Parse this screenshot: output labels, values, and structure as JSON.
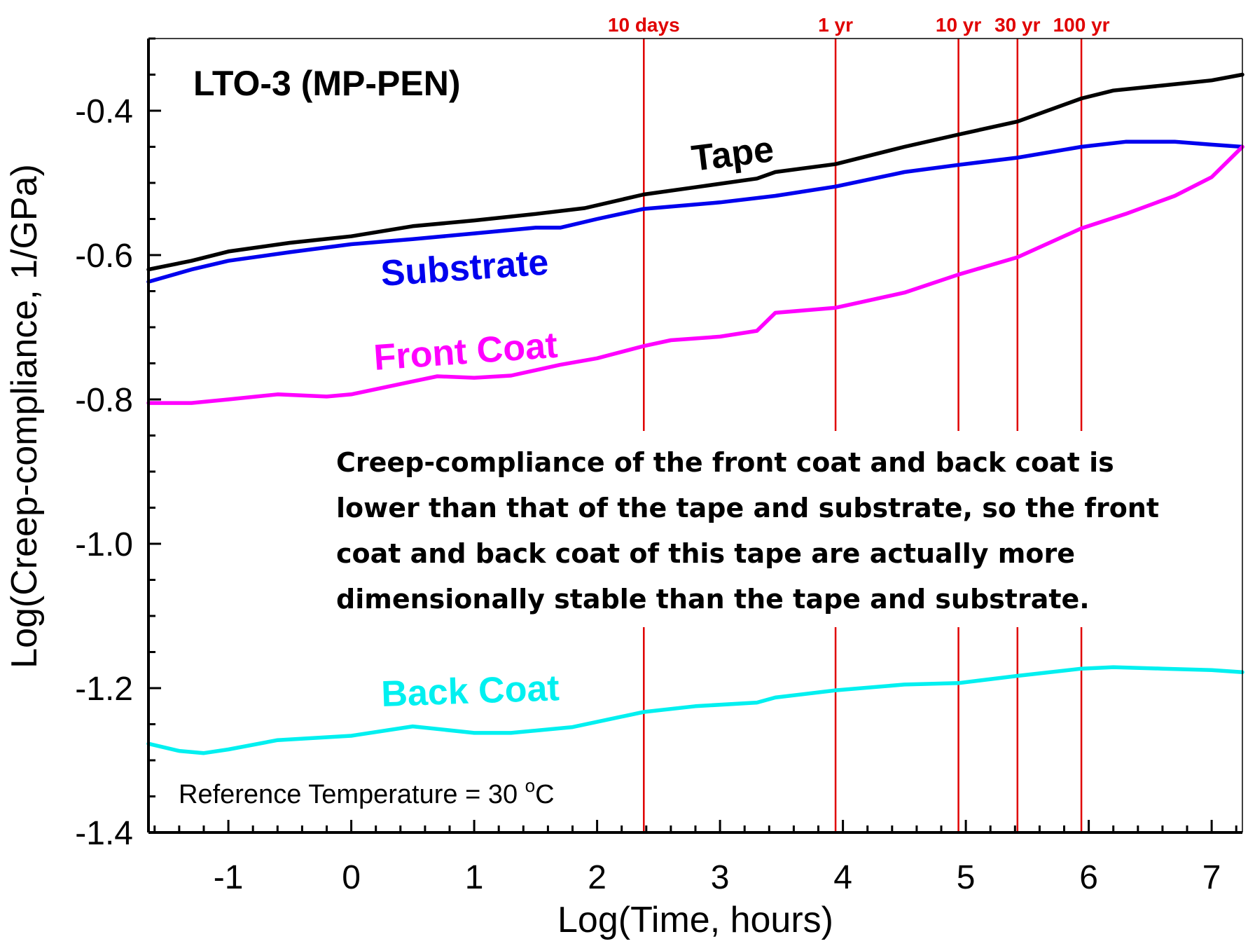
{
  "chart_data": {
    "type": "line",
    "title": "LTO-3 (MP-PEN)",
    "xlabel": "Log(Time, hours)",
    "ylabel": "Log(Creep-compliance, 1/GPa)",
    "xlim": [
      -1.65,
      7.25
    ],
    "ylim": [
      -1.4,
      -0.3
    ],
    "x_ticks": [
      -1,
      0,
      1,
      2,
      3,
      4,
      5,
      6,
      7
    ],
    "y_ticks": [
      -1.4,
      -1.2,
      -1.0,
      -0.8,
      -0.6,
      -0.4
    ],
    "x_tick_labels": [
      "-1",
      "0",
      "1",
      "2",
      "3",
      "4",
      "5",
      "6",
      "7"
    ],
    "y_tick_labels": [
      "-1.4",
      "-1.2",
      "-1.0",
      "-0.8",
      "-0.6",
      "-0.4"
    ],
    "grid": false,
    "markers": [
      {
        "label": "10 days",
        "x": 2.38
      },
      {
        "label": "1 yr",
        "x": 3.94
      },
      {
        "label": "10 yr",
        "x": 4.94
      },
      {
        "label": "30 yr",
        "x": 5.42
      },
      {
        "label": "100 yr",
        "x": 5.94
      }
    ],
    "annotation": "Creep-compliance of the front coat and back coat is lower than that of the tape and substrate, so the front coat and back coat of this tape are actually more dimensionally stable than the tape and substrate.",
    "annotation_lines": [
      "Creep-compliance of the front coat and back coat is",
      "lower than that of the tape and substrate, so the front",
      "coat and back coat of this tape are actually more",
      "dimensionally stable than the tape and substrate."
    ],
    "reference": {
      "prefix": "Reference Temperature = 30 ",
      "sup": "o",
      "suffix": "C"
    },
    "series": [
      {
        "name": "Tape",
        "color": "#000000",
        "x": [
          -1.65,
          -1.3,
          -1.0,
          -0.5,
          0.0,
          0.5,
          1.0,
          1.5,
          1.9,
          2.38,
          2.8,
          3.3,
          3.45,
          3.94,
          4.5,
          4.94,
          5.42,
          5.94,
          6.2,
          6.6,
          7.0,
          7.25
        ],
        "y": [
          -0.62,
          -0.608,
          -0.595,
          -0.583,
          -0.574,
          -0.56,
          -0.552,
          -0.543,
          -0.535,
          -0.516,
          -0.506,
          -0.494,
          -0.485,
          -0.474,
          -0.45,
          -0.433,
          -0.415,
          -0.383,
          -0.372,
          -0.365,
          -0.358,
          -0.35
        ]
      },
      {
        "name": "Substrate",
        "color": "#0000ee",
        "x": [
          -1.65,
          -1.3,
          -1.0,
          -0.5,
          0.0,
          0.5,
          1.0,
          1.5,
          1.7,
          2.0,
          2.38,
          3.0,
          3.45,
          3.94,
          4.5,
          4.94,
          5.42,
          5.94,
          6.3,
          6.7,
          7.0,
          7.25
        ],
        "y": [
          -0.637,
          -0.62,
          -0.608,
          -0.596,
          -0.585,
          -0.578,
          -0.57,
          -0.562,
          -0.562,
          -0.55,
          -0.536,
          -0.527,
          -0.518,
          -0.505,
          -0.485,
          -0.475,
          -0.465,
          -0.45,
          -0.443,
          -0.443,
          -0.447,
          -0.45
        ]
      },
      {
        "name": "Front Coat",
        "color": "#ff00ff",
        "x": [
          -1.65,
          -1.3,
          -1.0,
          -0.6,
          -0.2,
          0.0,
          0.5,
          0.7,
          1.0,
          1.3,
          1.7,
          2.0,
          2.38,
          2.6,
          3.0,
          3.3,
          3.45,
          3.94,
          4.5,
          4.94,
          5.42,
          5.94,
          6.3,
          6.7,
          7.0,
          7.25
        ],
        "y": [
          -0.805,
          -0.805,
          -0.8,
          -0.793,
          -0.796,
          -0.793,
          -0.775,
          -0.768,
          -0.77,
          -0.767,
          -0.752,
          -0.743,
          -0.726,
          -0.718,
          -0.713,
          -0.705,
          -0.68,
          -0.673,
          -0.652,
          -0.627,
          -0.603,
          -0.563,
          -0.543,
          -0.518,
          -0.492,
          -0.45
        ]
      },
      {
        "name": "Back Coat",
        "color": "#00f0f0",
        "x": [
          -1.65,
          -1.4,
          -1.2,
          -1.0,
          -0.6,
          0.0,
          0.5,
          1.0,
          1.3,
          1.8,
          2.38,
          2.8,
          3.3,
          3.45,
          3.94,
          4.5,
          4.94,
          5.42,
          5.94,
          6.2,
          6.6,
          7.0,
          7.25
        ],
        "y": [
          -1.277,
          -1.287,
          -1.29,
          -1.285,
          -1.272,
          -1.266,
          -1.253,
          -1.262,
          -1.262,
          -1.254,
          -1.233,
          -1.225,
          -1.22,
          -1.213,
          -1.203,
          -1.195,
          -1.193,
          -1.183,
          -1.173,
          -1.171,
          -1.173,
          -1.175,
          -1.178
        ]
      }
    ]
  }
}
